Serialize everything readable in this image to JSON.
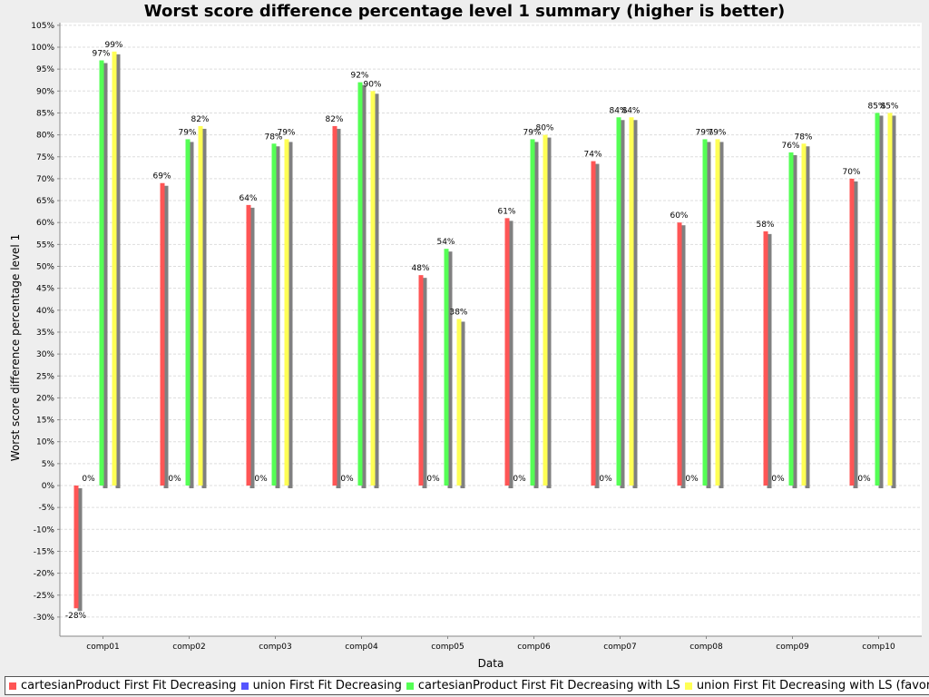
{
  "chart_data": {
    "type": "bar",
    "title": "Worst score difference percentage level 1 summary (higher is better)",
    "xlabel": "Data",
    "ylabel": "Worst score difference percentage level 1",
    "ylim": [
      -32,
      105
    ],
    "yticks": [
      105,
      100,
      95,
      90,
      85,
      80,
      75,
      70,
      65,
      60,
      55,
      50,
      45,
      40,
      35,
      30,
      25,
      20,
      15,
      10,
      5,
      0,
      -5,
      -10,
      -15,
      -20,
      -25,
      -30
    ],
    "grid": true,
    "legend_position": "bottom",
    "categories": [
      "comp01",
      "comp02",
      "comp03",
      "comp04",
      "comp05",
      "comp06",
      "comp07",
      "comp08",
      "comp09",
      "comp10"
    ],
    "series": [
      {
        "name": "cartesianProduct First Fit Decreasing",
        "color": "#ff5555",
        "values": [
          -28,
          69,
          64,
          82,
          48,
          61,
          74,
          60,
          58,
          70
        ],
        "labels": [
          "-28%",
          "69%",
          "64%",
          "82%",
          "48%",
          "61%",
          "74%",
          "60%",
          "58%",
          "70%"
        ]
      },
      {
        "name": "union First Fit Decreasing",
        "color": "#5555ff",
        "values": [
          0,
          0,
          0,
          0,
          0,
          0,
          0,
          0,
          0,
          0
        ],
        "labels": [
          "0%",
          "0%",
          "0%",
          "0%",
          "0%",
          "0%",
          "0%",
          "0%",
          "0%",
          "0%"
        ]
      },
      {
        "name": "cartesianProduct First Fit Decreasing with LS",
        "color": "#55ff55",
        "values": [
          97,
          79,
          78,
          92,
          54,
          79,
          84,
          79,
          76,
          85
        ],
        "labels": [
          "97%",
          "79%",
          "78%",
          "92%",
          "54%",
          "79%",
          "84%",
          "79%",
          "76%",
          "85%"
        ]
      },
      {
        "name": "union First Fit Decreasing with LS (favorite)",
        "color": "#ffff55",
        "values": [
          99,
          82,
          79,
          90,
          38,
          80,
          84,
          79,
          78,
          85
        ],
        "labels": [
          "99%",
          "82%",
          "79%",
          "90%",
          "38%",
          "80%",
          "84%",
          "79%",
          "78%",
          "85%"
        ]
      }
    ]
  }
}
